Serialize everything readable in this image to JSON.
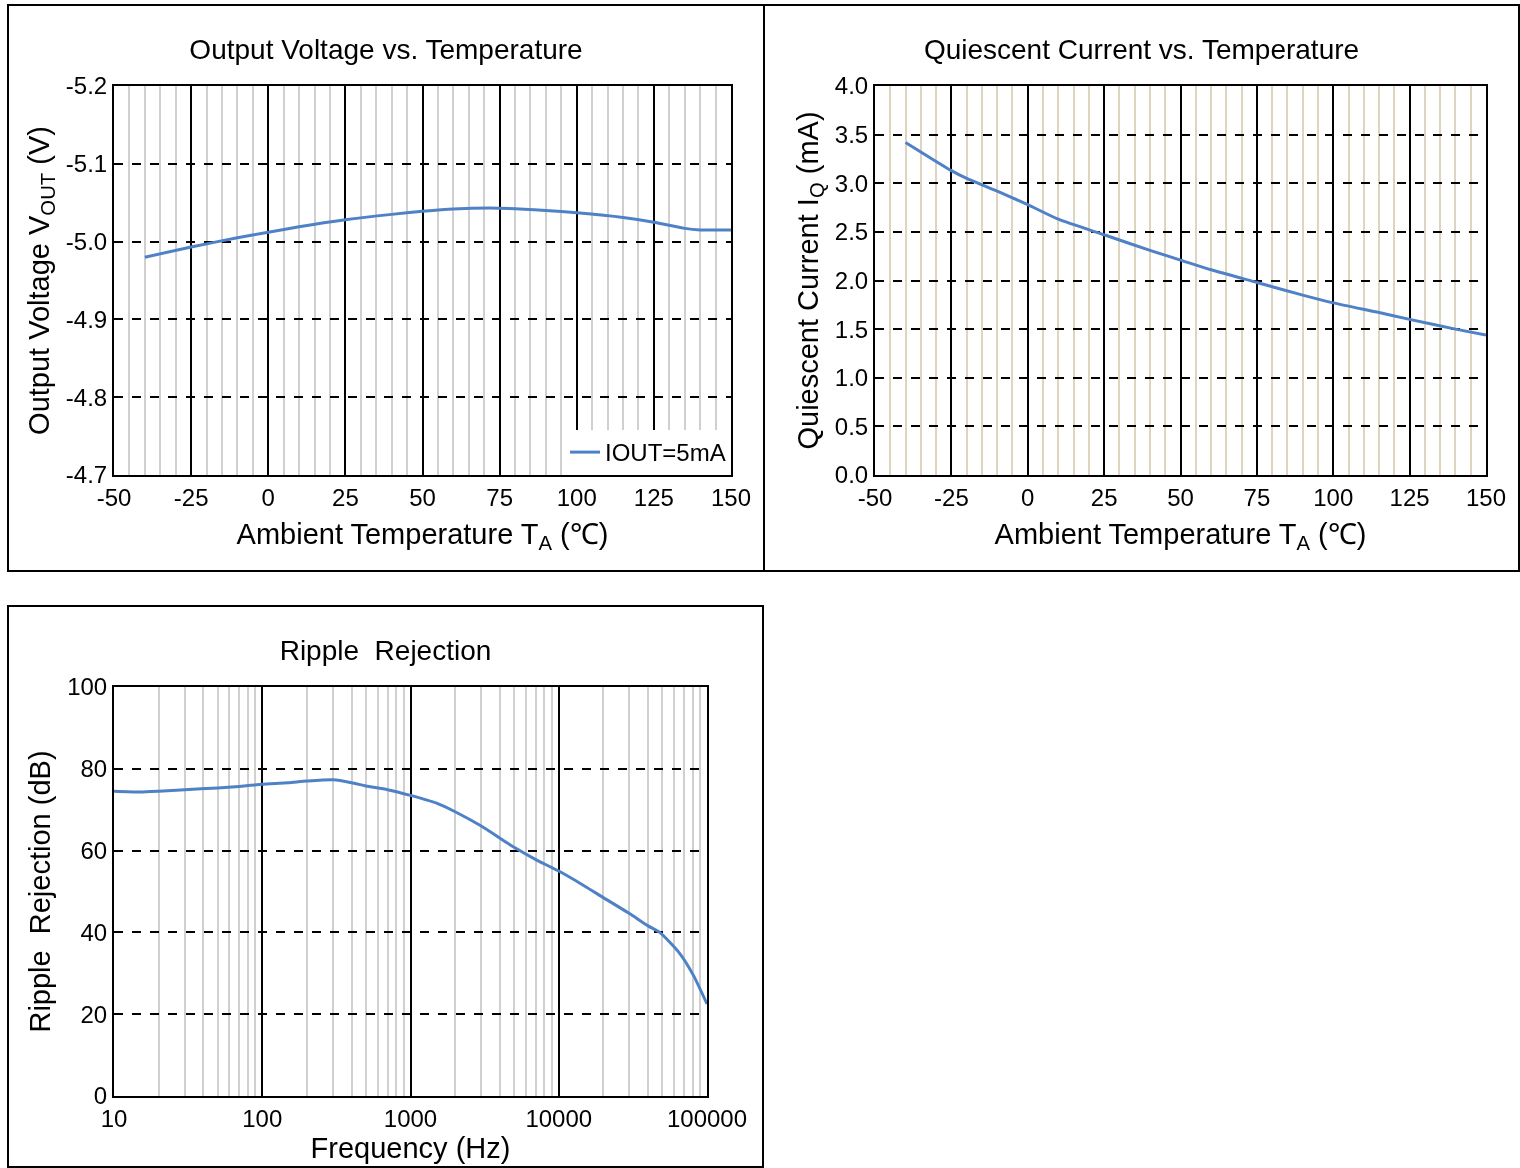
{
  "chart_data": [
    {
      "type": "line",
      "title": "Output Voltage vs. Temperature",
      "xlabel": "Ambient Temperature T$_{A}$ (℃)",
      "ylabel": "Output Voltage V$_{OUT}$ (V)",
      "series": [
        {
          "name": "IOUT=5mA",
          "color": "#4f81c7",
          "x": [
            -40,
            -25,
            -10,
            0,
            10,
            25,
            40,
            50,
            60,
            75,
            90,
            100,
            115,
            125,
            135,
            140,
            150
          ],
          "values": [
            -4.98,
            -4.993,
            -5.005,
            -5.012,
            -5.019,
            -5.028,
            -5.035,
            -5.039,
            -5.042,
            -5.043,
            -5.04,
            -5.037,
            -5.031,
            -5.025,
            -5.017,
            -5.015,
            -5.015
          ]
        }
      ],
      "xlim": [
        -50,
        150
      ],
      "xticks": [
        -50,
        -25,
        0,
        25,
        50,
        75,
        100,
        125,
        150
      ],
      "ylim": [
        -4.7,
        -5.2
      ],
      "yticks": [
        {
          "value": -5.2,
          "label": "-5.2"
        },
        {
          "value": -5.1,
          "label": "-5.1"
        },
        {
          "value": -5,
          "label": "-5.0"
        },
        {
          "value": -4.9,
          "label": "-4.9"
        },
        {
          "value": -4.8,
          "label": "-4.8"
        },
        {
          "value": -4.7,
          "label": "-4.7"
        }
      ],
      "grid": true,
      "legend": "bottom right",
      "line_style": "solid",
      "marker": "none"
    },
    {
      "type": "line",
      "title": "Quiescent Current vs. Temperature",
      "xlabel": "Ambient Temperature T$_{A}$ (℃)",
      "ylabel": "Quiescent Current I$_{Q}$ (mA)",
      "series": [
        {
          "color": "#4f81c7",
          "x": [
            -40,
            -25,
            -20,
            -10,
            0,
            10,
            25,
            40,
            50,
            60,
            75,
            90,
            100,
            115,
            125,
            140,
            150
          ],
          "values": [
            3.42,
            3.13,
            3.05,
            2.92,
            2.78,
            2.63,
            2.47,
            2.31,
            2.21,
            2.11,
            1.98,
            1.85,
            1.77,
            1.67,
            1.6,
            1.5,
            1.44
          ]
        }
      ],
      "xlim": [
        -50,
        150
      ],
      "xticks": [
        -50,
        -25,
        0,
        25,
        50,
        75,
        100,
        125,
        150
      ],
      "ylim": [
        0,
        4
      ],
      "yticks": [
        {
          "value": 0,
          "label": "0.0"
        },
        {
          "value": 0.5,
          "label": "0.5"
        },
        {
          "value": 1,
          "label": "1.0"
        },
        {
          "value": 1.5,
          "label": "1.5"
        },
        {
          "value": 2,
          "label": "2.0"
        },
        {
          "value": 2.5,
          "label": "2.5"
        },
        {
          "value": 3,
          "label": "3.0"
        },
        {
          "value": 3.5,
          "label": "3.5"
        },
        {
          "value": 4,
          "label": "4.0"
        }
      ],
      "grid": true,
      "legend": false,
      "line_style": "solid",
      "marker": "none"
    },
    {
      "type": "line",
      "title": "Ripple  Rejection",
      "xlabel": "Frequency (Hz)",
      "ylabel": "Ripple  Rejection (dB)",
      "series": [
        {
          "color": "#4f81c7",
          "x": [
            10,
            15,
            20,
            30,
            50,
            70,
            100,
            150,
            200,
            300,
            400,
            500,
            700,
            1000,
            1500,
            2000,
            3000,
            5000,
            7000,
            10000,
            15000,
            20000,
            30000,
            40000,
            48000,
            65000,
            81000,
            100000
          ],
          "values": [
            74.5,
            74.3,
            74.5,
            74.9,
            75.3,
            75.7,
            76.2,
            76.6,
            77,
            77.3,
            76.6,
            75.8,
            74.9,
            73.5,
            71.6,
            69.5,
            66,
            60.8,
            57.8,
            55,
            51.3,
            48.5,
            44.6,
            41.6,
            40,
            35,
            29.5,
            22.5
          ]
        }
      ],
      "log": "x",
      "xlim": [
        10,
        100000
      ],
      "xticks": [
        10,
        100,
        1000,
        10000,
        100000
      ],
      "ylim": [
        0,
        100
      ],
      "yticks": [
        0,
        20,
        40,
        60,
        80,
        100
      ],
      "grid": true,
      "legend": false,
      "line_style": "solid",
      "marker": "none"
    }
  ]
}
